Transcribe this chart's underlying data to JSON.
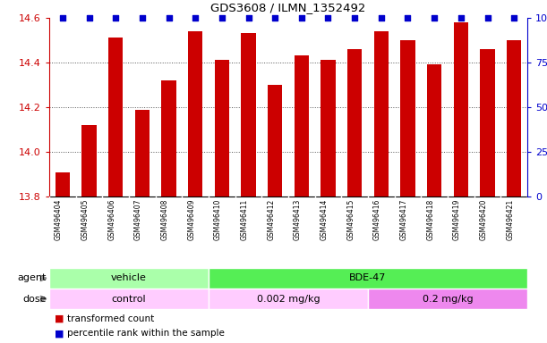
{
  "title": "GDS3608 / ILMN_1352492",
  "samples": [
    "GSM496404",
    "GSM496405",
    "GSM496406",
    "GSM496407",
    "GSM496408",
    "GSM496409",
    "GSM496410",
    "GSM496411",
    "GSM496412",
    "GSM496413",
    "GSM496414",
    "GSM496415",
    "GSM496416",
    "GSM496417",
    "GSM496418",
    "GSM496419",
    "GSM496420",
    "GSM496421"
  ],
  "values": [
    13.91,
    14.12,
    14.51,
    14.19,
    14.32,
    14.54,
    14.41,
    14.53,
    14.3,
    14.43,
    14.41,
    14.46,
    14.54,
    14.5,
    14.39,
    14.58,
    14.46,
    14.5
  ],
  "percentile_values": [
    100,
    100,
    100,
    100,
    100,
    100,
    100,
    100,
    100,
    100,
    100,
    100,
    100,
    100,
    100,
    100,
    100,
    100
  ],
  "ylim_left": [
    13.8,
    14.6
  ],
  "ylim_right": [
    0,
    100
  ],
  "yticks_left": [
    13.8,
    14.0,
    14.2,
    14.4,
    14.6
  ],
  "yticks_right": [
    0,
    25,
    50,
    75,
    100
  ],
  "bar_color": "#cc0000",
  "percentile_color": "#0000cc",
  "agent_groups": [
    {
      "label": "vehicle",
      "start": 0,
      "end": 5,
      "color": "#aaffaa"
    },
    {
      "label": "BDE-47",
      "start": 6,
      "end": 17,
      "color": "#55ee55"
    }
  ],
  "dose_groups": [
    {
      "label": "control",
      "start": 0,
      "end": 5,
      "color": "#ffccff"
    },
    {
      "label": "0.002 mg/kg",
      "start": 6,
      "end": 11,
      "color": "#ffccff"
    },
    {
      "label": "0.2 mg/kg",
      "start": 12,
      "end": 17,
      "color": "#ee88ee"
    }
  ],
  "agent_label": "agent",
  "dose_label": "dose",
  "legend_bar_label": "transformed count",
  "legend_dot_label": "percentile rank within the sample",
  "grid_color": "#888888",
  "bg_color": "#ffffff",
  "left_tick_color": "#cc0000",
  "right_tick_color": "#0000cc",
  "xtick_bg": "#cccccc",
  "xtick_sep_color": "#ffffff"
}
